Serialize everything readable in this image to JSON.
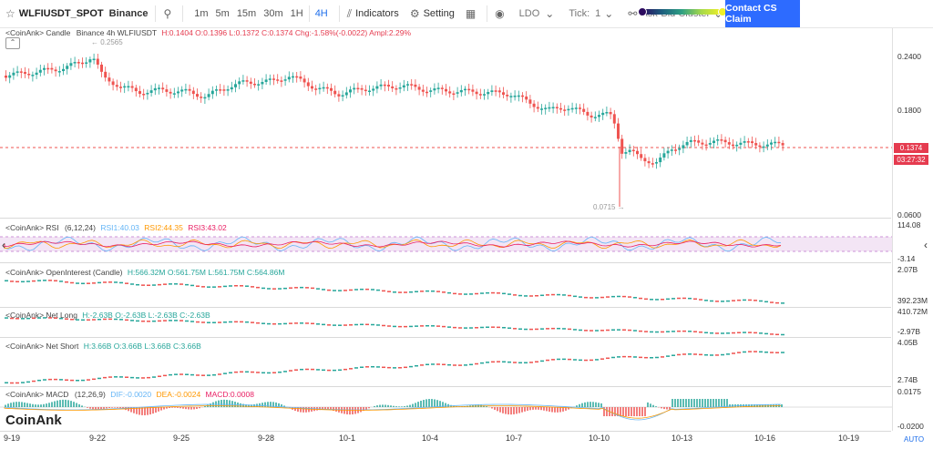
{
  "toolbar": {
    "symbol": "WLFIUSDT_SPOT",
    "exchange": "Binance",
    "intervals": [
      "1m",
      "5m",
      "15m",
      "30m",
      "1H",
      "4H"
    ],
    "active_interval": "4H",
    "indicators_label": "Indicators",
    "setting_label": "Setting",
    "ldo_label": "LDO",
    "tick_label": "Tick:",
    "tick_value": "1",
    "askbid_label": "Ask-Bid Cluster",
    "contact_label": "Contact CS Claim"
  },
  "main_panel": {
    "legend_prefix": "<CoinAnk> Candle",
    "legend_exchange": "Binance 4h WLFIUSDT",
    "h": "H:0.1404",
    "o": "O:0.1396",
    "l": "L:0.1372",
    "c": "C:0.1374",
    "chg": "Chg:-1.58%(-0.0022)",
    "ampl": "Ampl:2.29%",
    "high_marker": "0.2565",
    "low_marker": "0.0715",
    "price_axis": [
      "0.2400",
      "0.1800",
      "0.0600"
    ],
    "current_price": "0.1374",
    "countdown": "03:27:32"
  },
  "rsi_panel": {
    "label": "<CoinAnk> RSI",
    "params": "(6,12,24)",
    "rsi1": "RSI1:40.03",
    "rsi2": "RSI2:44.35",
    "rsi3": "RSI3:43.02",
    "axis_top": "114.08",
    "axis_bottom": "-3.14"
  },
  "oi_panel": {
    "label": "<CoinAnk> OpenInterest (Candle)",
    "h": "H:566.32M",
    "o": "O:561.75M",
    "l": "L:561.75M",
    "c": "C:564.86M",
    "axis_top": "2.07B",
    "axis_bottom": "392.23M"
  },
  "netlong_panel": {
    "label": "<CoinAnk> Net Long",
    "h": "H:-2.63B",
    "o": "O:-2.63B",
    "l": "L:-2.63B",
    "c": "C:-2.63B",
    "axis_top": "410.72M",
    "axis_bottom": "-2.97B"
  },
  "netshort_panel": {
    "label": "<CoinAnk> Net Short",
    "h": "H:3.66B",
    "o": "O:3.66B",
    "l": "L:3.66B",
    "c": "C:3.66B",
    "axis_top": "4.05B",
    "axis_bottom": "2.74B"
  },
  "macd_panel": {
    "label": "<CoinAnk> MACD",
    "params": "(12,26,9)",
    "dif": "DIF:-0.0020",
    "dea": "DEA:-0.0024",
    "macd": "MACD:0.0008",
    "axis_top": "0.0175",
    "axis_bottom": "-0.0200"
  },
  "dates": [
    "9-19",
    "9-22",
    "9-25",
    "9-28",
    "10-1",
    "10-4",
    "10-7",
    "10-10",
    "10-13",
    "10-16",
    "10-19"
  ],
  "auto_label": "AUTO",
  "logo_text": "CoinAnk",
  "colors": {
    "up": "#26a69a",
    "down": "#ef5350",
    "accent": "#2d6bff",
    "rsi1": "#64b5f6",
    "rsi2": "#ff9800",
    "rsi3": "#e91e63"
  }
}
